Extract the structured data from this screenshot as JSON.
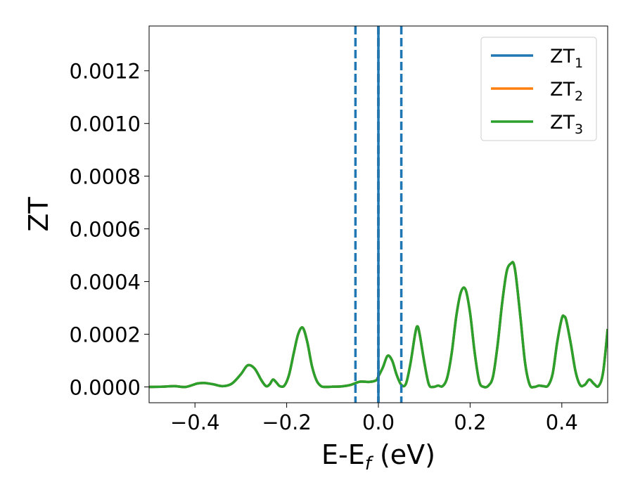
{
  "chart_data": {
    "type": "line",
    "xlabel": {
      "main": "E-E",
      "sub": "f",
      "suffix": " (eV)"
    },
    "ylabel": "ZT",
    "xlim": [
      -0.5,
      0.5
    ],
    "ylim": [
      -6e-05,
      0.00137
    ],
    "x_ticks": [
      -0.4,
      -0.2,
      0.0,
      0.2,
      0.4
    ],
    "x_tick_labels": [
      "−0.4",
      "−0.2",
      "0.0",
      "0.2",
      "0.4"
    ],
    "y_ticks": [
      0.0,
      0.0002,
      0.0004,
      0.0006,
      0.0008,
      0.001,
      0.0012
    ],
    "y_tick_labels": [
      "0.0000",
      "0.0002",
      "0.0004",
      "0.0006",
      "0.0008",
      "0.0010",
      "0.0012"
    ],
    "grid": false,
    "legend_position": "top-right",
    "vlines": [
      {
        "x": -0.05,
        "style": "dashed",
        "color": "#1f77b4"
      },
      {
        "x": 0.05,
        "style": "dashed",
        "color": "#1f77b4"
      },
      {
        "x": 0.0,
        "style": "dashed",
        "color": "#000000"
      },
      {
        "x": 0.0,
        "style": "solid",
        "color": "#1f77b4"
      }
    ],
    "series": [
      {
        "name": "ZT",
        "sub": "1",
        "color": "#1f77b4"
      },
      {
        "name": "ZT",
        "sub": "2",
        "color": "#ff7f0e"
      },
      {
        "name": "ZT",
        "sub": "3",
        "color": "#2ca02c"
      }
    ],
    "curve": {
      "x": [
        -0.5,
        -0.47,
        -0.445,
        -0.42,
        -0.395,
        -0.38,
        -0.36,
        -0.34,
        -0.32,
        -0.3,
        -0.285,
        -0.27,
        -0.255,
        -0.245,
        -0.237,
        -0.23,
        -0.223,
        -0.215,
        -0.205,
        -0.195,
        -0.185,
        -0.175,
        -0.165,
        -0.155,
        -0.145,
        -0.135,
        -0.125,
        -0.115,
        -0.1,
        -0.08,
        -0.06,
        -0.04,
        -0.02,
        -0.005,
        0.0,
        0.01,
        0.02,
        0.03,
        0.04,
        0.05,
        0.06,
        0.07,
        0.08,
        0.085,
        0.09,
        0.1,
        0.11,
        0.12,
        0.13,
        0.14,
        0.15,
        0.16,
        0.17,
        0.18,
        0.19,
        0.2,
        0.21,
        0.22,
        0.23,
        0.24,
        0.25,
        0.26,
        0.27,
        0.28,
        0.29,
        0.295,
        0.3,
        0.31,
        0.32,
        0.33,
        0.34,
        0.35,
        0.36,
        0.37,
        0.38,
        0.39,
        0.4,
        0.405,
        0.41,
        0.42,
        0.43,
        0.44,
        0.45,
        0.46,
        0.47,
        0.48,
        0.49,
        0.5
      ],
      "y": [
        0.0,
        1e-06,
        3e-06,
        0.0,
        1.3e-05,
        1.5e-05,
        1e-05,
        3e-06,
        1.2e-05,
        4.8e-05,
        8.2e-05,
        7e-05,
        2.5e-05,
        3e-06,
        1e-05,
        2.8e-05,
        1.8e-05,
        3e-06,
        5e-06,
        4.5e-05,
        0.000125,
        0.0002,
        0.000225,
        0.00017,
        8e-05,
        2.5e-05,
        3e-06,
        0.0,
        1e-06,
        2e-06,
        8e-06,
        2e-05,
        1.9e-05,
        2.5e-05,
        4e-05,
        7.5e-05,
        0.000118,
        0.0001,
        4.5e-05,
        8e-06,
        1.2e-05,
        9e-05,
        0.0002,
        0.00023,
        0.0002,
        9.5e-05,
        1e-05,
        0.0,
        5e-06,
        3e-06,
        3.5e-05,
        0.00013,
        0.00027,
        0.00036,
        0.00037,
        0.00028,
        0.00013,
        2e-05,
        0.0,
        5e-06,
        4e-05,
        0.00016,
        0.00032,
        0.00044,
        0.00047,
        0.000468,
        0.00042,
        0.00026,
        9e-05,
        8e-06,
        0.0,
        5e-06,
        3e-06,
        5e-06,
        5e-05,
        0.00017,
        0.00026,
        0.000268,
        0.00025,
        0.00016,
        5.8e-05,
        7e-06,
        8e-06,
        2.8e-05,
        1.2e-05,
        3e-06,
        5.5e-05,
        0.00022
      ]
    }
  }
}
